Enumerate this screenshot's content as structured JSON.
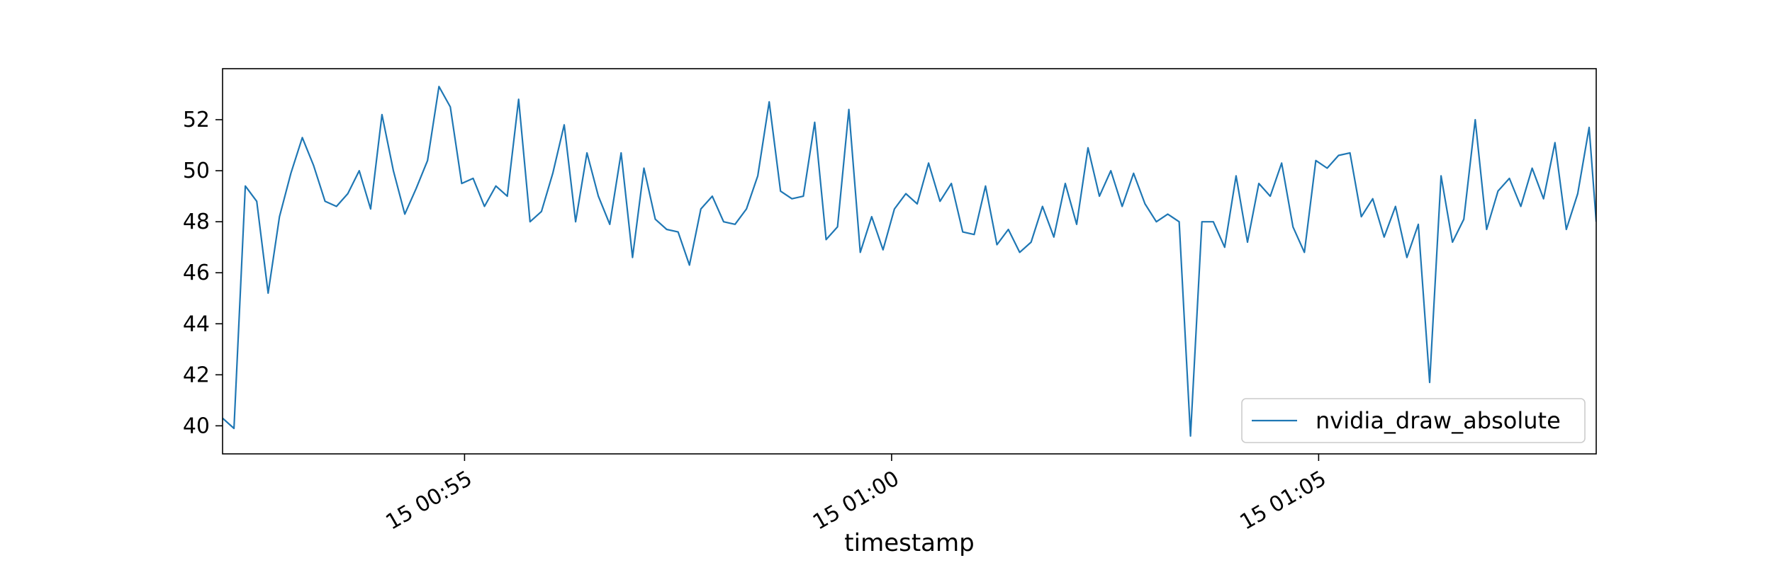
{
  "chart_data": {
    "type": "line",
    "title": "",
    "xlabel": "timestamp",
    "ylabel": "",
    "x_ticks": [
      {
        "x": 240,
        "label": "15 00:55"
      },
      {
        "x": 540,
        "label": "15 01:00"
      },
      {
        "x": 840,
        "label": "15 01:05"
      }
    ],
    "y_ticks": [
      40,
      42,
      44,
      46,
      48,
      50,
      52
    ],
    "xlim": [
      70,
      1035
    ],
    "ylim": [
      38.9,
      54.0
    ],
    "grid": false,
    "legend": {
      "location": "lower-right"
    },
    "series": [
      {
        "name": "nvidia_draw_absolute",
        "color": "#1f77b4",
        "x": [
          70,
          78,
          86,
          94,
          102,
          110,
          118,
          126,
          134,
          142,
          150,
          158,
          166,
          174,
          182,
          190,
          198,
          206,
          214,
          222,
          230,
          238,
          246,
          254,
          262,
          270,
          278,
          286,
          294,
          302,
          310,
          318,
          326,
          334,
          342,
          350,
          358,
          366,
          374,
          382,
          390,
          398,
          406,
          414,
          422,
          430,
          438,
          446,
          454,
          462,
          470,
          478,
          486,
          494,
          502,
          510,
          518,
          526,
          534,
          542,
          550,
          558,
          566,
          574,
          582,
          590,
          598,
          606,
          614,
          622,
          630,
          638,
          646,
          654,
          662,
          670,
          678,
          686,
          694,
          702,
          710,
          718,
          726,
          734,
          742,
          750,
          758,
          766,
          774,
          782,
          790,
          798,
          806,
          814,
          822,
          830,
          838,
          846,
          854,
          862,
          870,
          878,
          886,
          894,
          902,
          910,
          918,
          926,
          934,
          942,
          950,
          958,
          966,
          974,
          982,
          990,
          998,
          1006,
          1014,
          1022,
          1030,
          1035
        ],
        "values": [
          40.3,
          39.9,
          49.4,
          48.8,
          45.2,
          48.2,
          49.9,
          51.3,
          50.2,
          48.8,
          48.6,
          49.1,
          50.0,
          48.5,
          52.2,
          50.0,
          48.3,
          49.3,
          50.4,
          53.3,
          52.5,
          49.5,
          49.7,
          48.6,
          49.4,
          49.0,
          52.8,
          48.0,
          48.4,
          49.9,
          51.8,
          48.0,
          50.7,
          49.0,
          47.9,
          50.7,
          46.6,
          50.1,
          48.1,
          47.7,
          47.6,
          46.3,
          48.5,
          49.0,
          48.0,
          47.9,
          48.5,
          49.8,
          52.7,
          49.2,
          48.9,
          49.0,
          51.9,
          47.3,
          47.8,
          52.4,
          46.8,
          48.2,
          46.9,
          48.5,
          49.1,
          48.7,
          50.3,
          48.8,
          49.5,
          47.6,
          47.5,
          49.4,
          47.1,
          47.7,
          46.8,
          47.2,
          48.6,
          47.4,
          49.5,
          47.9,
          50.9,
          49.0,
          50.0,
          48.6,
          49.9,
          48.7,
          48.0,
          48.3,
          48.0,
          39.6,
          48.0,
          48.0,
          47.0,
          49.8,
          47.2,
          49.5,
          49.0,
          50.3,
          47.8,
          46.8,
          50.4,
          50.1,
          50.6,
          50.7,
          48.2,
          48.9,
          47.4,
          48.6,
          46.6,
          47.9,
          41.7,
          49.8,
          47.2,
          48.1,
          52.0,
          47.7,
          49.2,
          49.7,
          48.6,
          50.1,
          48.9,
          51.1,
          47.7,
          49.1,
          51.7,
          48.0
        ]
      }
    ]
  }
}
